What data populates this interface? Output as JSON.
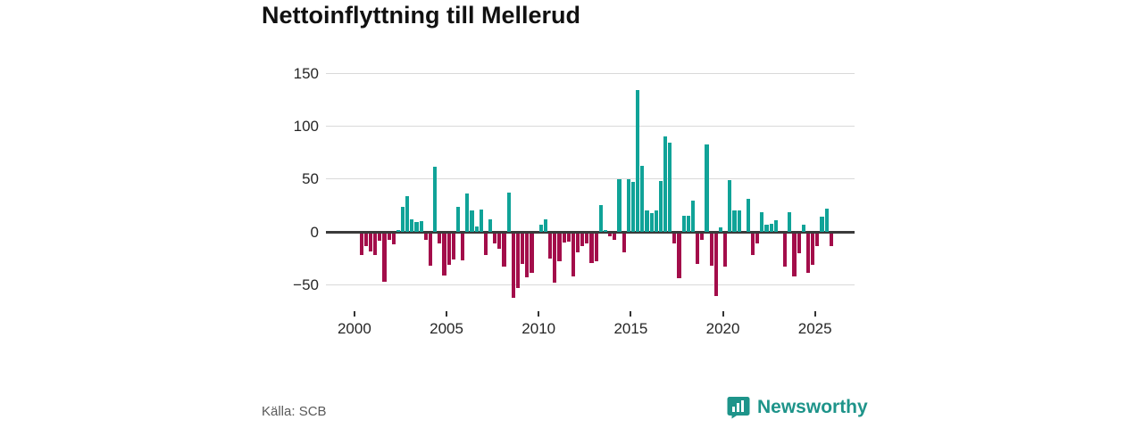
{
  "title": "Nettoinflyttning till Mellerud",
  "source_label": "Källa: SCB",
  "logo": {
    "brand": "Newsworthy",
    "icon": "bar-chart-bubble-icon"
  },
  "chart_data": {
    "type": "bar",
    "title": "Nettoinflyttning till Mellerud",
    "frequency": "quarterly",
    "start_period": "2000-Q1",
    "end_period": "2025-Q4",
    "xlabel": "",
    "ylabel": "",
    "x_tick_labels": [
      "2000",
      "2005",
      "2010",
      "2015",
      "2020",
      "2025"
    ],
    "y_ticks": [
      150,
      100,
      50,
      0,
      -50
    ],
    "ylim": [
      -72,
      157
    ],
    "grid": true,
    "legend": false,
    "positive_color": "#10a398",
    "negative_color": "#a30d4a",
    "values": [
      0,
      -21,
      -12,
      -17,
      -21,
      -7,
      -46,
      -6,
      -11,
      2,
      24,
      34,
      12,
      9,
      10,
      -6,
      -31,
      62,
      -10,
      -40,
      -30,
      -25,
      24,
      -26,
      36,
      20,
      5,
      21,
      -21,
      12,
      -10,
      -15,
      -32,
      37,
      -61,
      -52,
      -29,
      -42,
      -38,
      0,
      7,
      12,
      -24,
      -47,
      -27,
      -9,
      -8,
      -41,
      -18,
      -12,
      -10,
      -28,
      -27,
      25,
      2,
      -3,
      -6,
      50,
      -18,
      50,
      47,
      135,
      63,
      20,
      18,
      20,
      48,
      91,
      85,
      -10,
      -43,
      15,
      15,
      30,
      -29,
      -6,
      83,
      -31,
      -60,
      4,
      -32,
      49,
      20,
      20,
      0,
      31,
      -21,
      -10,
      19,
      7,
      8,
      11,
      0,
      -32,
      19,
      -41,
      -19,
      7,
      -38,
      -30,
      -12,
      14,
      22,
      -12
    ]
  },
  "layout_colors": {
    "grid": "#d9d9d9",
    "zero_line": "#3a3a3a",
    "axis_text": "#262626",
    "title_text": "#111111",
    "source_text": "#595959",
    "brand_teal": "#1e948a"
  }
}
